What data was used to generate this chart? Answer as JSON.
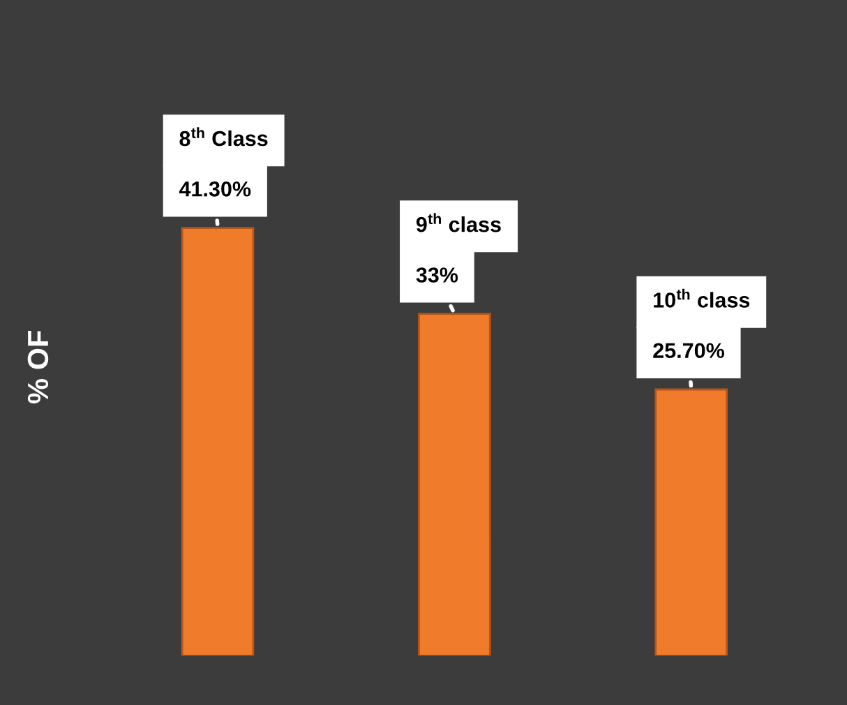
{
  "chart_data": {
    "type": "bar",
    "ylabel": "% OF",
    "categories": [
      null,
      null,
      null
    ],
    "values": [
      41.3,
      33,
      25.7
    ],
    "value_labels": [
      "41.30%",
      "33%",
      "25.70%"
    ],
    "annotations": [
      "8$^{th}$ Class",
      "9$^{th}$ class",
      "10$^{th}$ class"
    ],
    "color": "#f07b2a",
    "legend": false
  }
}
